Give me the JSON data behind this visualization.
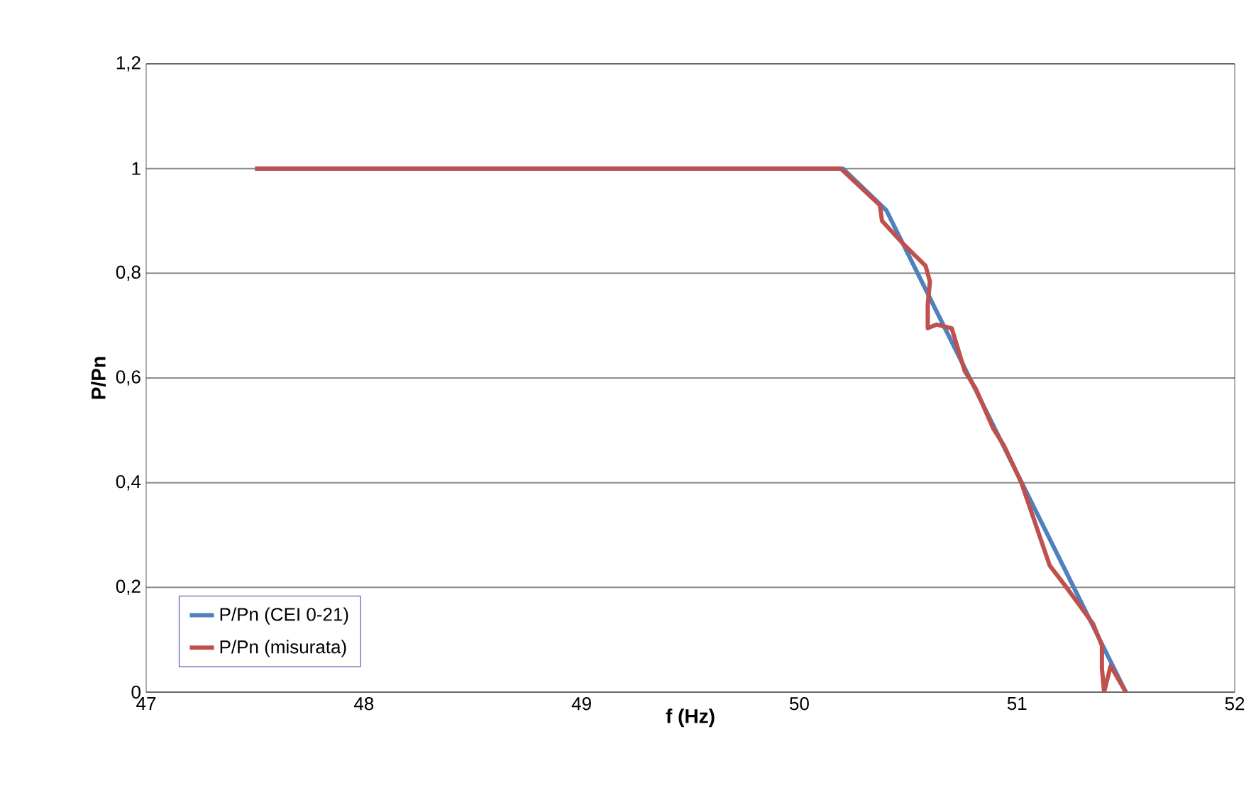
{
  "chart_data": {
    "type": "line",
    "xlabel": "f (Hz)",
    "ylabel": "P/Pn",
    "xlim": [
      47,
      52
    ],
    "ylim": [
      0,
      1.2
    ],
    "xticks": [
      47,
      48,
      49,
      50,
      51,
      52
    ],
    "yticks": [
      {
        "value": 0,
        "label": "0"
      },
      {
        "value": 0.2,
        "label": "0,2"
      },
      {
        "value": 0.4,
        "label": "0,4"
      },
      {
        "value": 0.6,
        "label": "0,6"
      },
      {
        "value": 0.8,
        "label": "0,8"
      },
      {
        "value": 1,
        "label": "1"
      },
      {
        "value": 1.2,
        "label": "1,2"
      }
    ],
    "grid": "y",
    "legend": "bottom left",
    "marker": "none",
    "line_style": "solid",
    "series": [
      {
        "name": "P/Pn (CEI 0-21)",
        "color": "#4f81bd",
        "x": [
          47.5,
          50.2,
          50.4,
          51.5
        ],
        "values": [
          1,
          1,
          0.92,
          0
        ]
      },
      {
        "name": "P/Pn (misurata)",
        "color": "#c0504d",
        "x": [
          47.5,
          50.19,
          50.37,
          50.38,
          50.48,
          50.58,
          50.6,
          50.59,
          50.59,
          50.63,
          50.7,
          50.76,
          50.81,
          50.89,
          50.94,
          51.02,
          51.15,
          51.22,
          51.35,
          51.39,
          51.39,
          51.4,
          51.43,
          51.5
        ],
        "values": [
          1,
          1,
          0.93,
          0.9,
          0.855,
          0.814,
          0.784,
          0.74,
          0.695,
          0.702,
          0.695,
          0.613,
          0.58,
          0.504,
          0.471,
          0.4,
          0.242,
          0.204,
          0.13,
          0.089,
          0.046,
          0,
          0.05,
          0
        ]
      }
    ]
  }
}
